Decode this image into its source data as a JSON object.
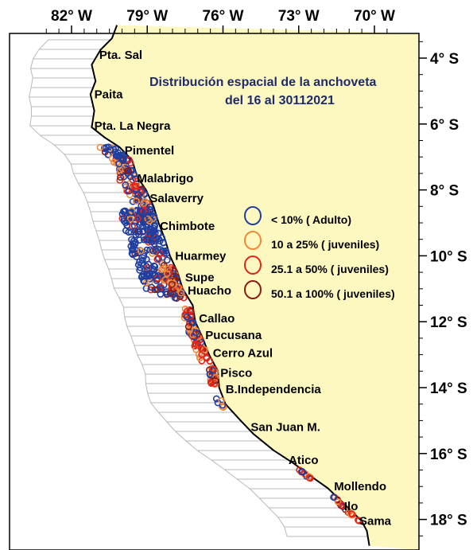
{
  "title_line1": "Distribución espacial de la anchoveta",
  "title_line2": "del 16 al 30112021",
  "lon_ticks": [
    {
      "value": -82,
      "label": "82° W"
    },
    {
      "value": -79,
      "label": "79° W"
    },
    {
      "value": -76,
      "label": "76° W"
    },
    {
      "value": -73,
      "label": "73° W"
    },
    {
      "value": -70,
      "label": "70° W"
    }
  ],
  "lat_ticks": [
    {
      "value": -4,
      "label": "4° S"
    },
    {
      "value": -6,
      "label": "6° S"
    },
    {
      "value": -8,
      "label": "8° S"
    },
    {
      "value": -10,
      "label": "10° S"
    },
    {
      "value": -12,
      "label": "12° S"
    },
    {
      "value": -14,
      "label": "14° S"
    },
    {
      "value": -16,
      "label": "16° S"
    },
    {
      "value": -18,
      "label": "18° S"
    }
  ],
  "places": [
    {
      "name": "Pta. Sal",
      "lon": -80.9,
      "lat": -3.9
    },
    {
      "name": "Paita",
      "lon": -81.1,
      "lat": -5.1
    },
    {
      "name": "Pta. La Negra",
      "lon": -81.1,
      "lat": -6.05
    },
    {
      "name": "Pimentel",
      "lon": -79.9,
      "lat": -6.8
    },
    {
      "name": "Malabrigo",
      "lon": -79.4,
      "lat": -7.65
    },
    {
      "name": "Salaverry",
      "lon": -78.9,
      "lat": -8.25
    },
    {
      "name": "Chimbote",
      "lon": -78.5,
      "lat": -9.1
    },
    {
      "name": "Huarmey",
      "lon": -77.9,
      "lat": -10.0
    },
    {
      "name": "Supe",
      "lon": -77.5,
      "lat": -10.65
    },
    {
      "name": "Huacho",
      "lon": -77.4,
      "lat": -11.05
    },
    {
      "name": "Callao",
      "lon": -76.95,
      "lat": -11.9
    },
    {
      "name": "Pucusana",
      "lon": -76.7,
      "lat": -12.4
    },
    {
      "name": "Cerro Azul",
      "lon": -76.4,
      "lat": -12.95
    },
    {
      "name": "Pisco",
      "lon": -76.1,
      "lat": -13.55
    },
    {
      "name": "B.Independencia",
      "lon": -75.9,
      "lat": -14.05
    },
    {
      "name": "San Juan M.",
      "lon": -74.9,
      "lat": -15.2
    },
    {
      "name": "Atico",
      "lon": -73.4,
      "lat": -16.2
    },
    {
      "name": "Mollendo",
      "lon": -71.6,
      "lat": -17.0
    },
    {
      "name": "Ilo",
      "lon": -71.2,
      "lat": -17.6
    },
    {
      "name": "Sama",
      "lon": -70.6,
      "lat": -18.05
    }
  ],
  "legend": [
    {
      "label": "< 10% ( Adulto)",
      "color": "#1f3ea0"
    },
    {
      "label": "10 a 25% ( juveniles)",
      "color": "#f0883a"
    },
    {
      "label": "25.1 a 50% ( juveniles)",
      "color": "#e0261b"
    },
    {
      "label": "50.1 a 100%  ( juveniles)",
      "color": "#8b1a12"
    }
  ],
  "colors": {
    "land": "#fdf8c0",
    "sea": "#ffffff",
    "grid_lines": "#b9b9b9",
    "coast": "#000000"
  }
}
